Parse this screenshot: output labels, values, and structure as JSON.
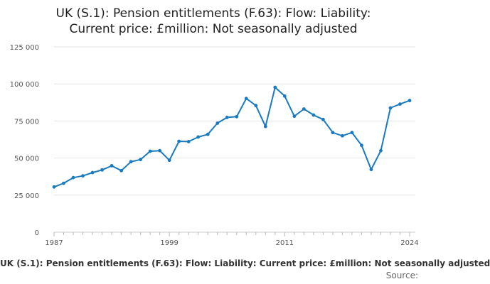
{
  "header": {
    "title_line1": "UK (S.1): Pension entitlements (F.63): Flow: Liability:",
    "title_line2": "Current price: £million: Not seasonally adjusted"
  },
  "legend": {
    "label": "UK (S.1): Pension entitlements (F.63): Flow: Liability: Current price: £million: Not seasonally adjusted"
  },
  "footer": {
    "source_label": "Source:"
  },
  "colors": {
    "series": "#1a7abf",
    "grid": "#e6e6e6",
    "axis": "#cccccc"
  },
  "chart_data": {
    "type": "line",
    "title": "UK (S.1): Pension entitlements (F.63): Flow: Liability: Current price: £million: Not seasonally adjusted",
    "xlabel": "",
    "ylabel": "",
    "xlim": [
      1987,
      2024
    ],
    "ylim": [
      0,
      125000
    ],
    "x_ticks": [
      "1987",
      "1999",
      "2011",
      "2024"
    ],
    "y_ticks": [
      "0",
      "25 000",
      "50 000",
      "75 000",
      "100 000",
      "125 000"
    ],
    "y_tick_values": [
      0,
      25000,
      50000,
      75000,
      100000,
      125000
    ],
    "grid": true,
    "legend_position": "bottom",
    "series": [
      {
        "name": "UK (S.1): Pension entitlements (F.63): Flow: Liability: Current price: £million: Not seasonally adjusted",
        "x": [
          1987,
          1988,
          1989,
          1990,
          1991,
          1992,
          1993,
          1994,
          1995,
          1996,
          1997,
          1998,
          1999,
          2000,
          2001,
          2002,
          2003,
          2004,
          2005,
          2006,
          2007,
          2008,
          2009,
          2010,
          2011,
          2012,
          2013,
          2014,
          2015,
          2016,
          2017,
          2018,
          2019,
          2020,
          2021,
          2022,
          2023,
          2024
        ],
        "values": [
          30500,
          33000,
          36800,
          38000,
          40200,
          42000,
          44800,
          41500,
          47500,
          49000,
          54600,
          55000,
          48500,
          61300,
          61100,
          64200,
          66000,
          73500,
          77400,
          77900,
          90200,
          85400,
          71300,
          97700,
          91800,
          78200,
          83100,
          79000,
          76000,
          67200,
          65000,
          67200,
          58600,
          42300,
          55000,
          83800,
          86400,
          88800
        ]
      }
    ]
  }
}
